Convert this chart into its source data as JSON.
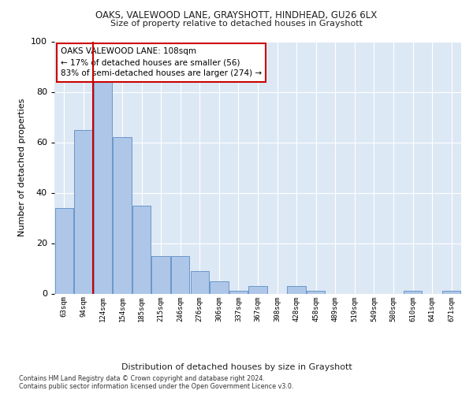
{
  "title1": "OAKS, VALEWOOD LANE, GRAYSHOTT, HINDHEAD, GU26 6LX",
  "title2": "Size of property relative to detached houses in Grayshott",
  "xlabel": "Distribution of detached houses by size in Grayshott",
  "ylabel": "Number of detached properties",
  "categories": [
    "63sqm",
    "94sqm",
    "124sqm",
    "154sqm",
    "185sqm",
    "215sqm",
    "246sqm",
    "276sqm",
    "306sqm",
    "337sqm",
    "367sqm",
    "398sqm",
    "428sqm",
    "458sqm",
    "489sqm",
    "519sqm",
    "549sqm",
    "580sqm",
    "610sqm",
    "641sqm",
    "671sqm"
  ],
  "values": [
    34,
    65,
    85,
    62,
    35,
    15,
    15,
    9,
    5,
    1,
    3,
    0,
    3,
    1,
    0,
    0,
    0,
    0,
    1,
    0,
    1
  ],
  "bar_color": "#aec6e8",
  "bar_edge_color": "#5b8ec4",
  "reference_line_color": "#cc0000",
  "annotation_text": "OAKS VALEWOOD LANE: 108sqm\n← 17% of detached houses are smaller (56)\n83% of semi-detached houses are larger (274) →",
  "annotation_box_color": "#ffffff",
  "annotation_box_edge": "#cc0000",
  "ylim": [
    0,
    100
  ],
  "yticks": [
    0,
    20,
    40,
    60,
    80,
    100
  ],
  "footer1": "Contains HM Land Registry data © Crown copyright and database right 2024.",
  "footer2": "Contains public sector information licensed under the Open Government Licence v3.0.",
  "bg_color": "#dde8f5",
  "fig_bg_color": "#ffffff"
}
